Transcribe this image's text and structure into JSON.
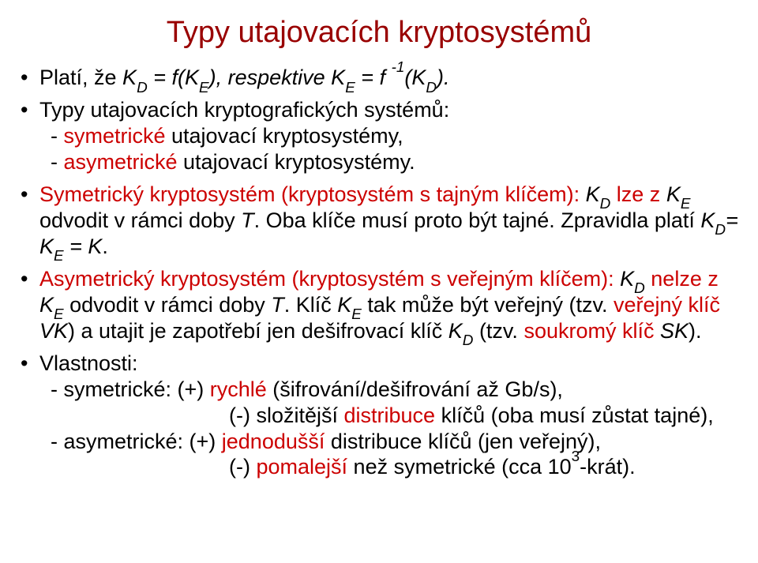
{
  "colors": {
    "title": "#990000",
    "body": "#000000",
    "highlight": "#cc0000",
    "background": "#ffffff"
  },
  "fontsize": {
    "title_pt": 38,
    "body_pt": 27
  },
  "title": "Typy utajovacích kryptosystémů",
  "b1": {
    "t1": "Platí, že ",
    "kd": "K",
    "eq1": " = f(",
    "ke": "K",
    "eq2": "), respektive ",
    "ke2": "K",
    "eq3": " = f ",
    "kd2": "K",
    "eq4": ").",
    "neg1": "-1",
    "sub_d": "D",
    "sub_e": "E"
  },
  "b2": {
    "t1": "Typy utajovacích kryptografických systémů:",
    "s1a": "- ",
    "s1b": "symetrické",
    "s1c": " utajovací kryptosystémy,",
    "s2a": "- ",
    "s2b": "asymetrické",
    "s2c": " utajovací kryptosystémy."
  },
  "b3": {
    "t1": "Symetrický kryptosystém (kryptosystém s tajným klíčem): ",
    "kd": "K",
    "t2": " lze z ",
    "ke": "K",
    "t3": " odvodit v rámci doby ",
    "T": "T",
    "t4": ". Oba klíče musí proto být tajné. Zpravidla platí ",
    "kd2": "K",
    "eq": "= ",
    "ke2": "K",
    "t5": " = ",
    "K": "K",
    "dot": ".",
    "sub_d": "D",
    "sub_e": "E"
  },
  "b4": {
    "t1": "Asymetrický kryptosystém (kryptosystém s veřejným klíčem): ",
    "kd": "K",
    "t2": " nelze z ",
    "ke": "K",
    "t3": " odvodit v rámci doby ",
    "T": "T",
    "t4": ". Klíč ",
    "ke2": "K",
    "t5": " tak může být veřejný (tzv. ",
    "vk_pre": "veřejný klíč ",
    "vk": "VK",
    "t6": ") a utajit je zapotřebí jen dešifrovací klíč ",
    "kd2": "K",
    "t7": " (tzv. ",
    "sk_pre": "soukromý klíč ",
    "sk": "SK",
    "t8": ").",
    "sub_d": "D",
    "sub_e": "E"
  },
  "b5": {
    "t1": "Vlastnosti:",
    "s1a": "- symetrické: (+) ",
    "s1b": "rychlé",
    "s1c": " (šifrování/dešifrování až Gb/s),",
    "s2a": "(-) složitější ",
    "s2b": "distribuce",
    "s2c": " klíčů (oba musí zůstat tajné),",
    "s3a": "- asymetrické: (+) ",
    "s3b": "jednodušší",
    "s3c": " distribuce klíčů (jen veřejný),",
    "s4a": "(-) ",
    "s4b": "pomalejší",
    "s4c": " než symetrické (cca 10",
    "s4d": "-krát).",
    "exp3": "3"
  }
}
